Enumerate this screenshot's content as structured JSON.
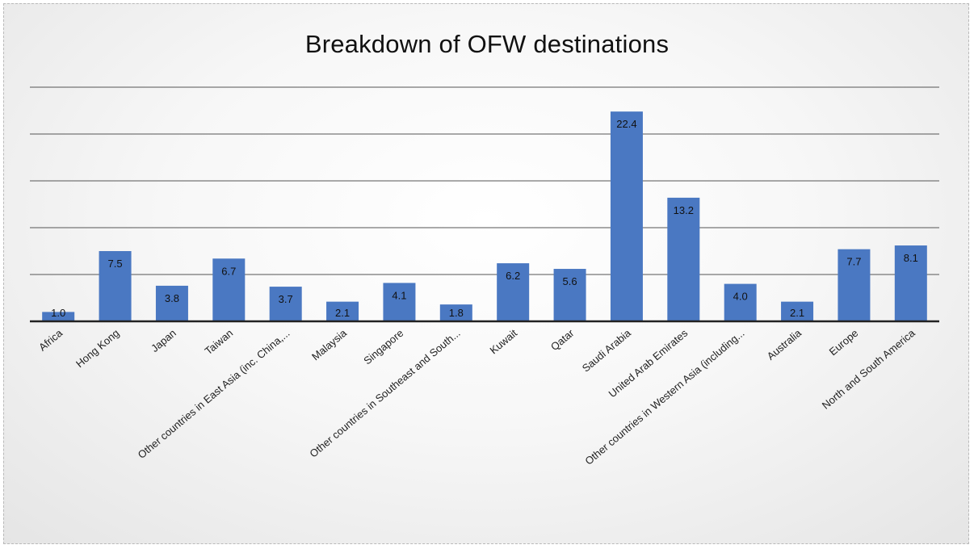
{
  "chart_data": {
    "type": "bar",
    "title": "Breakdown of OFW destinations",
    "xlabel": "",
    "ylabel": "",
    "ylim": [
      0,
      25
    ],
    "gridlines": [
      5,
      10,
      15,
      20,
      25
    ],
    "grid": true,
    "legend": "none",
    "bar_color": "#4a78c2",
    "categories": [
      "Africa",
      "Hong Kong",
      "Japan",
      "Taiwan",
      "Other countries in East Asia (inc. China,...",
      "Malaysia",
      "Singapore",
      "Other countries in Southeast and South...",
      "Kuwait",
      "Qatar",
      "Saudi Arabia",
      "United Arab Emirates",
      "Other countries in Western Asia (including...",
      "Australia",
      "Europe",
      "North and South America"
    ],
    "values": [
      1.0,
      7.5,
      3.8,
      6.7,
      3.7,
      2.1,
      4.1,
      1.8,
      6.2,
      5.6,
      22.4,
      13.2,
      4.0,
      2.1,
      7.7,
      8.1
    ],
    "value_labels": [
      "1.0",
      "7.5",
      "3.8",
      "6.7",
      "3.7",
      "2.1",
      "4.1",
      "1.8",
      "6.2",
      "5.6",
      "22.4",
      "13.2",
      "4.0",
      "2.1",
      "7.7",
      "8.1"
    ]
  }
}
